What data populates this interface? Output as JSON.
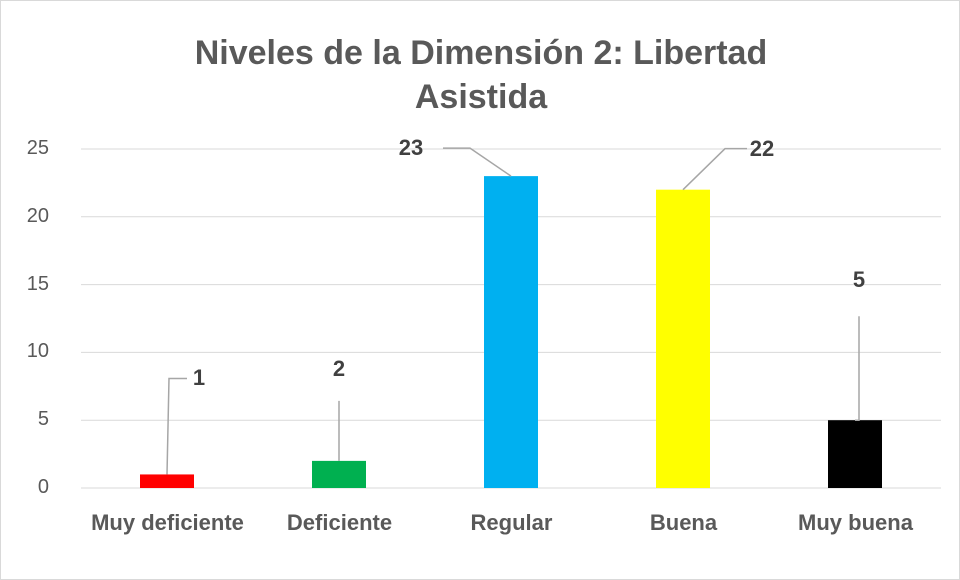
{
  "chart_data": {
    "type": "bar",
    "title": "Niveles de la Dimensión 2: Libertad Asistida",
    "categories": [
      "Muy deficiente",
      "Deficiente",
      "Regular",
      "Buena",
      "Muy buena"
    ],
    "values": [
      1,
      2,
      23,
      22,
      5
    ],
    "colors": [
      "#ff0000",
      "#00b050",
      "#00b0f0",
      "#ffff00",
      "#000000"
    ],
    "ylim": [
      0,
      25
    ],
    "yticks": [
      0,
      5,
      10,
      15,
      20,
      25
    ],
    "grid": true
  }
}
